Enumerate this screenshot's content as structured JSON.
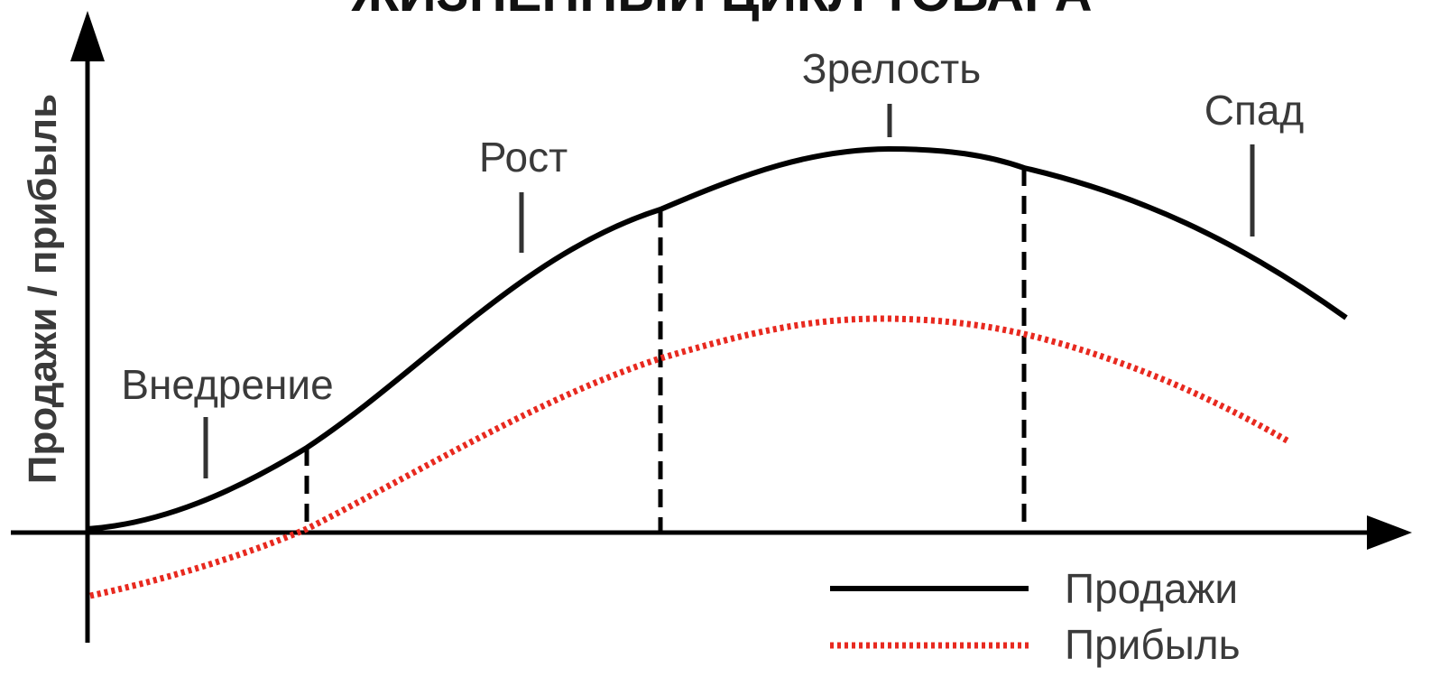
{
  "title": "ЖИЗНЕННЫЙ ЦИКЛ ТОВАРА",
  "y_axis_label": "Продажи / прибыль",
  "stages": [
    {
      "label": "Внедрение"
    },
    {
      "label": "Рост"
    },
    {
      "label": "Зрелость"
    },
    {
      "label": "Спад"
    }
  ],
  "legend": {
    "sales": "Продажи",
    "profit": "Прибыль"
  },
  "colors": {
    "sales": "#000000",
    "profit": "#e8291f",
    "axis": "#000000"
  }
}
